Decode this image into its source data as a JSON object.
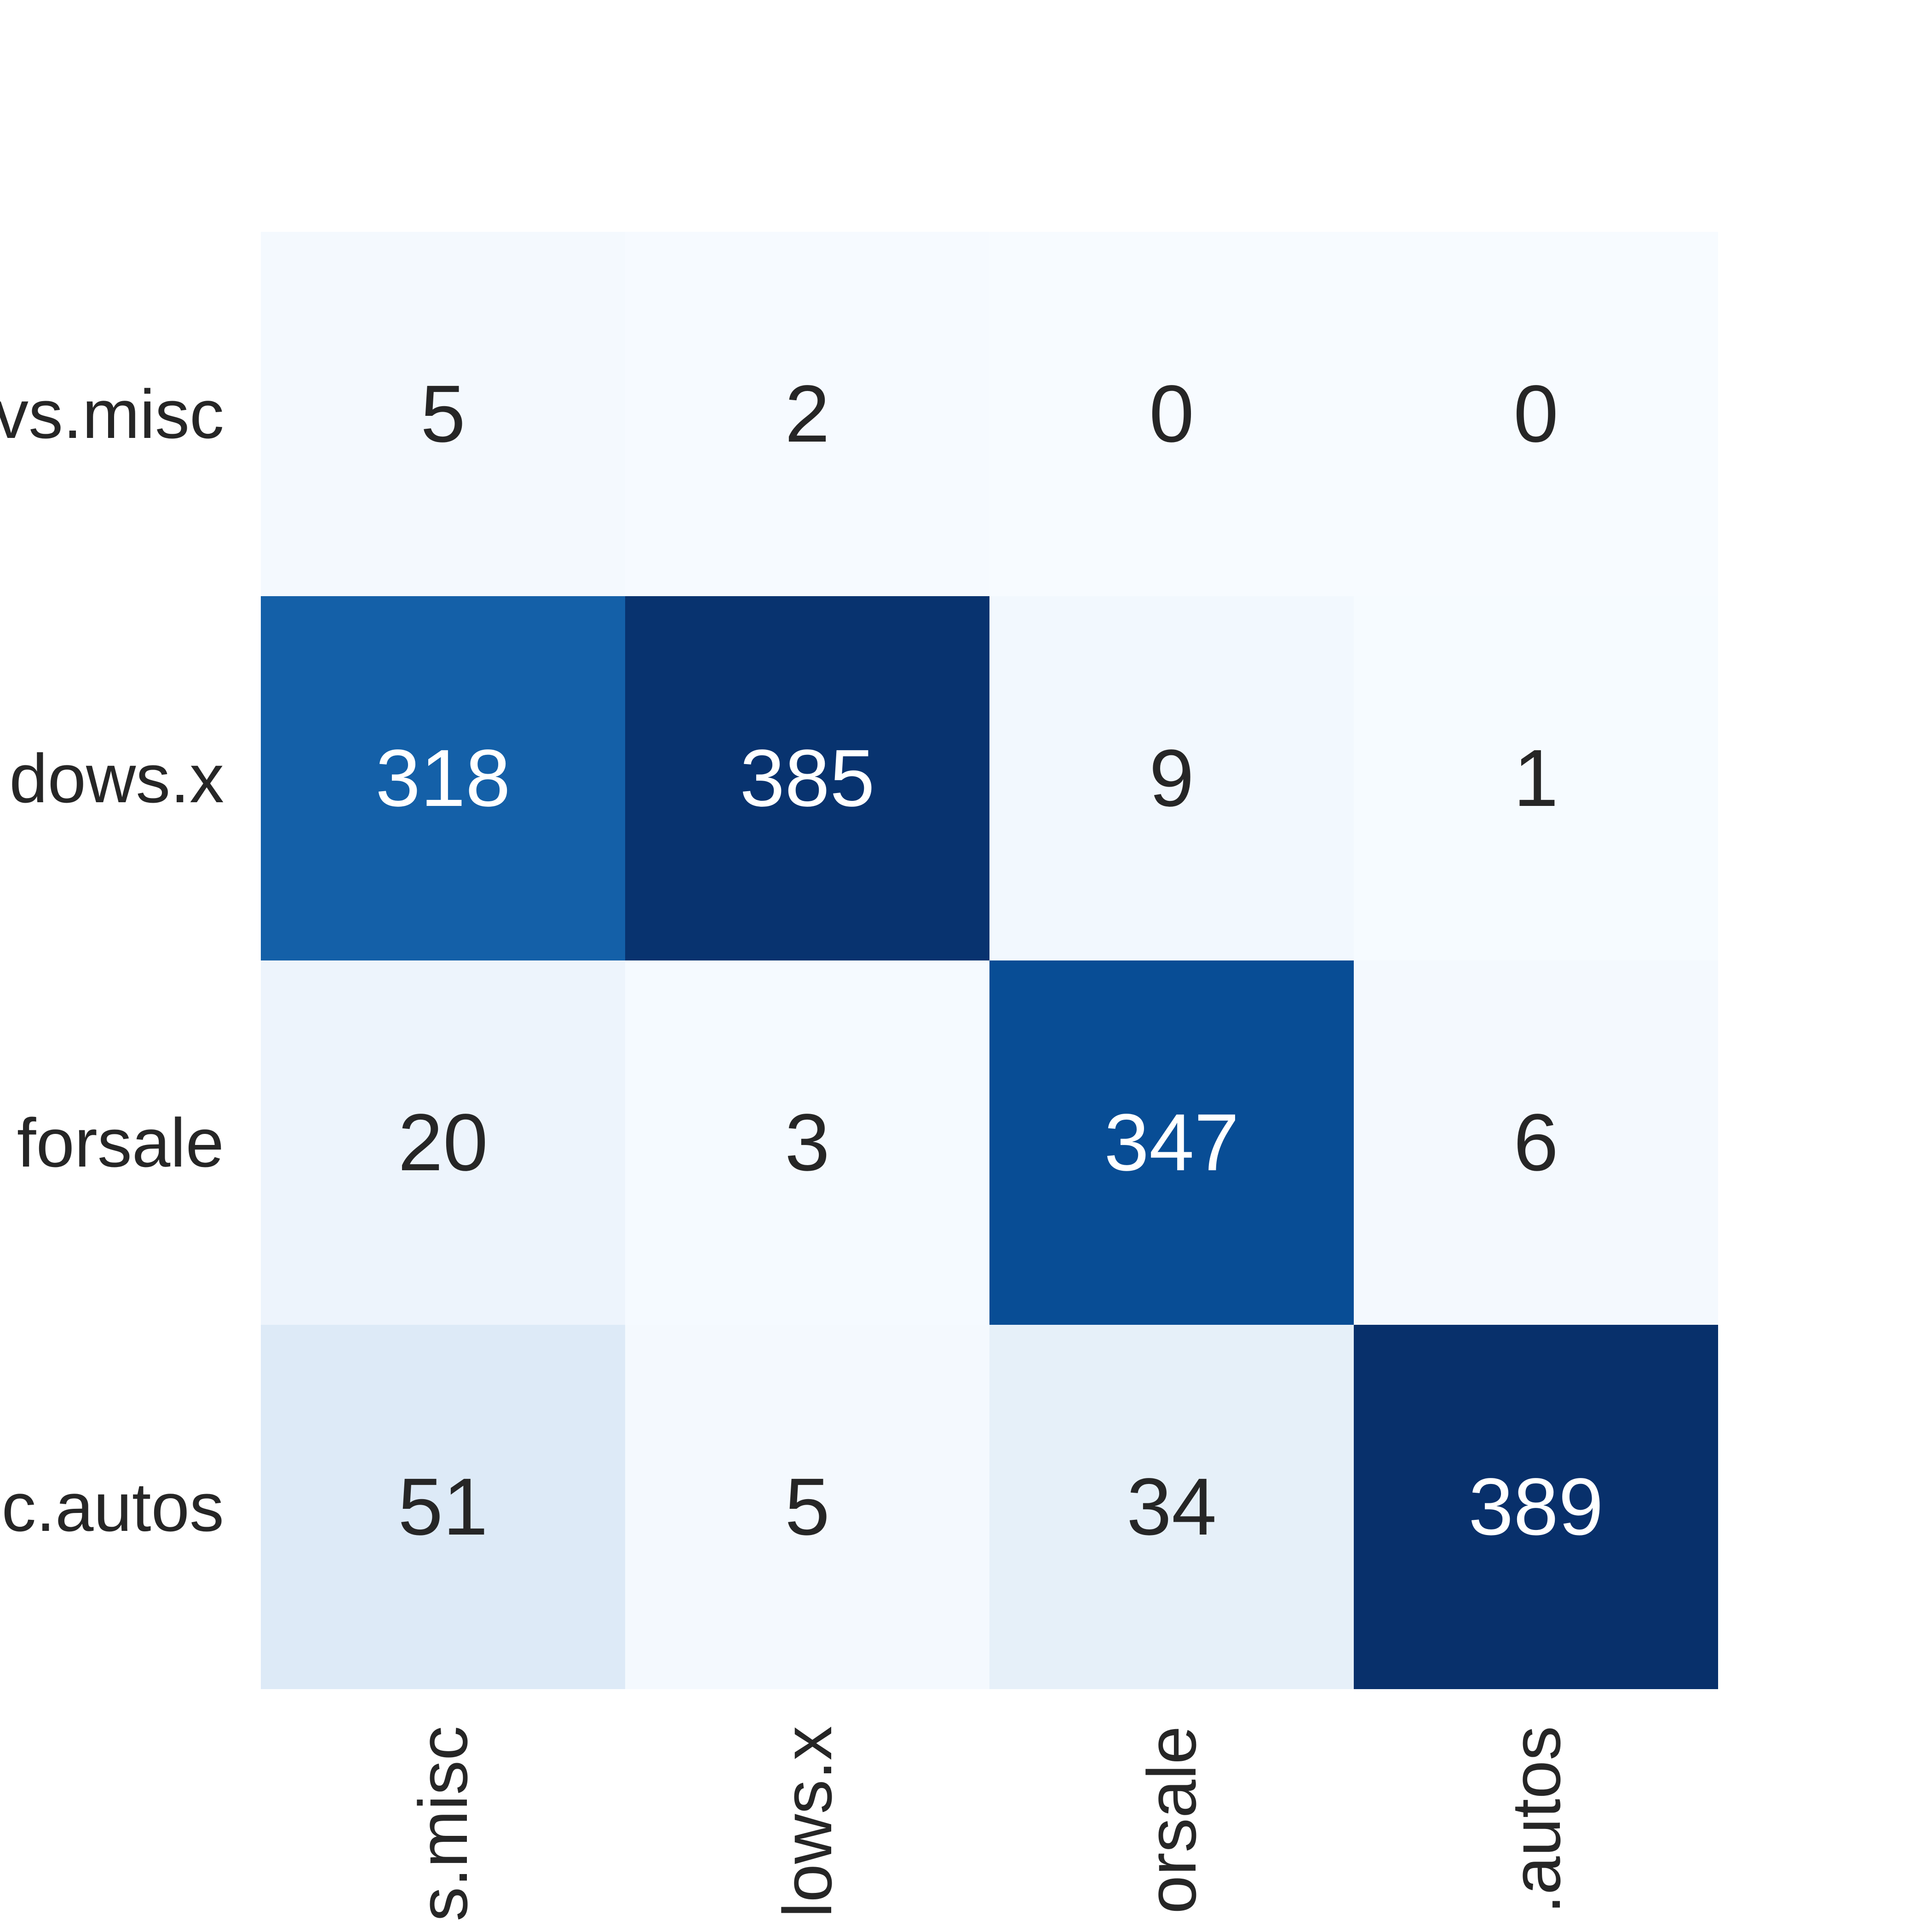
{
  "chart_data": {
    "type": "heatmap",
    "rows": [
      "comp.os.ms-windows.misc",
      "comp.windows.x",
      "misc.forsale",
      "rec.autos"
    ],
    "columns": [
      "comp.os.ms-windows.misc",
      "comp.windows.x",
      "misc.forsale",
      "rec.autos"
    ],
    "row_labels_visible": [
      "vs.misc",
      "dows.x",
      "forsale",
      "c.autos"
    ],
    "column_labels_visible": [
      "s.misc",
      "lows.x",
      "orsale",
      ".autos"
    ],
    "values": [
      [
        5,
        2,
        0,
        0
      ],
      [
        318,
        385,
        9,
        1
      ],
      [
        20,
        3,
        347,
        6
      ],
      [
        51,
        5,
        34,
        389
      ]
    ],
    "colormap": "Blues",
    "colormap_stops": [
      "#f7fbff",
      "#deebf7",
      "#c6dbef",
      "#9ecae1",
      "#6baed6",
      "#4292c6",
      "#2171b5",
      "#08519c",
      "#08306b"
    ],
    "value_range": [
      0,
      389
    ],
    "annotations_on": true,
    "text_dark": "#262626",
    "text_light": "#ffffff",
    "title": "",
    "xlabel": "",
    "ylabel": ""
  }
}
